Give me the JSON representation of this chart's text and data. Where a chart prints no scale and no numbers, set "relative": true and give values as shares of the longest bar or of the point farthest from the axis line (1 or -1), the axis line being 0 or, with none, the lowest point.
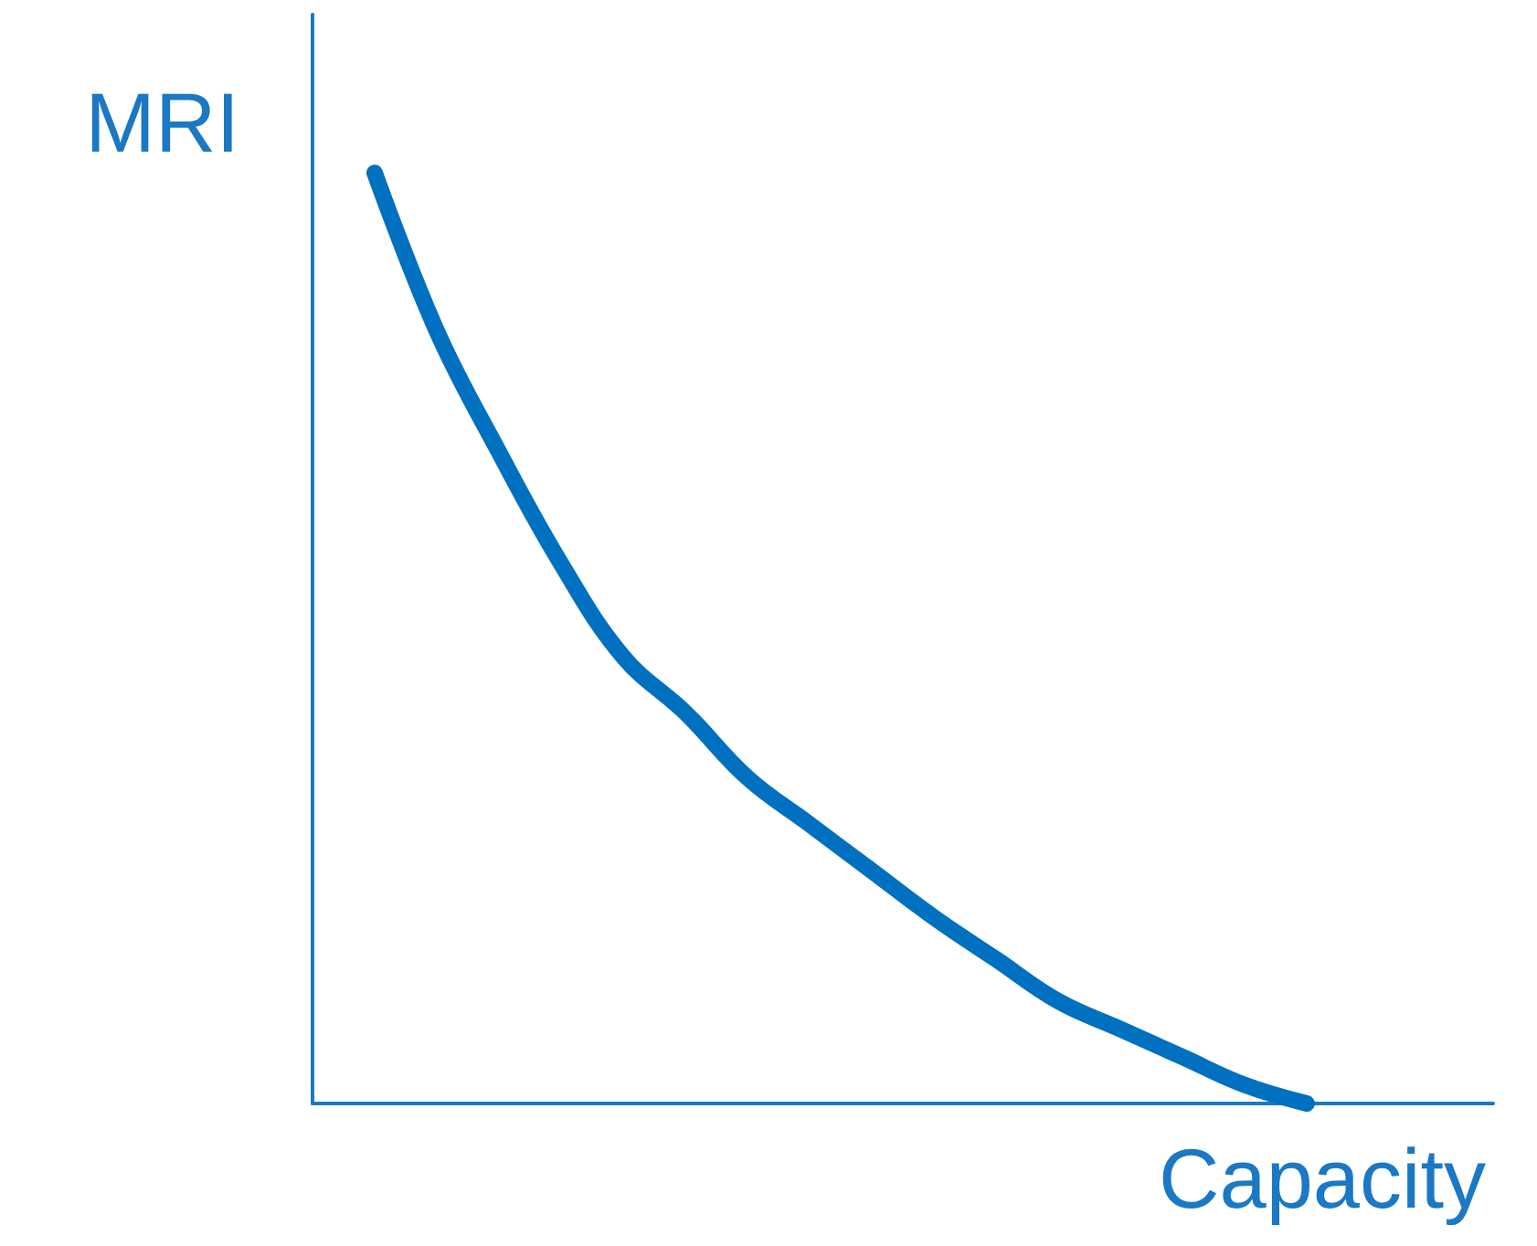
{
  "chart_data": {
    "type": "line",
    "relative": true,
    "xlabel": "Capacity",
    "ylabel": "MRI",
    "categories": [
      null,
      null,
      null,
      null,
      null,
      null,
      null,
      null,
      null,
      null,
      null,
      null,
      null,
      null,
      null,
      null,
      null,
      null,
      null,
      null
    ],
    "series": [
      {
        "color": "#0070c0",
        "values": [
          null,
          1.0,
          0.83,
          0.7,
          0.58,
          0.48,
          0.42,
          0.35,
          0.3,
          0.25,
          0.2,
          0.155,
          0.11,
          0.08,
          0.05,
          0.02,
          0.0,
          null,
          null,
          null
        ]
      }
    ],
    "grid": false,
    "line_style": "solid"
  }
}
